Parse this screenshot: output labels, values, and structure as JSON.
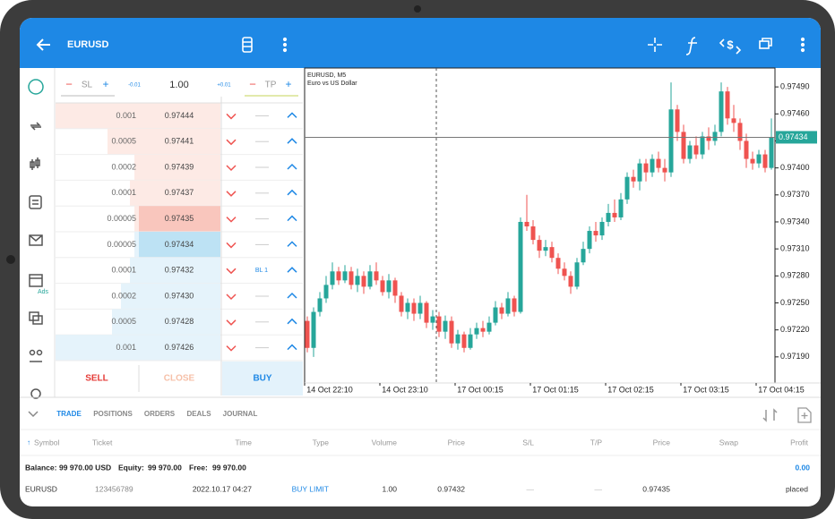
{
  "header": {
    "symbol": "EURUSD"
  },
  "order_panel": {
    "minus": "−",
    "plus": "+",
    "sl": "SL",
    "tp": "TP",
    "step_down": "-0.01",
    "volume": "1.00",
    "step_up": "+0.01",
    "depth": [
      {
        "volume": "0.001",
        "price": "0.97444"
      },
      {
        "volume": "0.0005",
        "price": "0.97441"
      },
      {
        "volume": "0.0002",
        "price": "0.97439"
      },
      {
        "volume": "0.0001",
        "price": "0.97437"
      },
      {
        "volume": "0.00005",
        "price": "0.97435"
      },
      {
        "volume": "0.00005",
        "price": "0.97434"
      },
      {
        "volume": "0.0001",
        "price": "0.97432"
      },
      {
        "volume": "0.0002",
        "price": "0.97430"
      },
      {
        "volume": "0.0005",
        "price": "0.97428"
      },
      {
        "volume": "0.001",
        "price": "0.97426"
      }
    ],
    "pending_label": "BL 1",
    "sell": "SELL",
    "close": "CLOSE",
    "buy": "BUY"
  },
  "sidebar": {
    "ads": "Ads"
  },
  "chart": {
    "type": "candlestick",
    "title": "EURUSD, M5",
    "subtitle": "Euro vs US Dollar",
    "ylim": [
      0.97161,
      0.97511
    ],
    "yticks": [
      {
        "value": 0.9749,
        "label": "0.97490"
      },
      {
        "value": 0.9746,
        "label": "0.97460"
      },
      {
        "value": 0.9743,
        "label": "0.97430"
      },
      {
        "value": 0.974,
        "label": "0.97400"
      },
      {
        "value": 0.9737,
        "label": "0.97370"
      },
      {
        "value": 0.9734,
        "label": "0.97340"
      },
      {
        "value": 0.9731,
        "label": "0.97310"
      },
      {
        "value": 0.9728,
        "label": "0.97280"
      },
      {
        "value": 0.9725,
        "label": "0.97250"
      },
      {
        "value": 0.9722,
        "label": "0.97220"
      },
      {
        "value": 0.9719,
        "label": "0.97190"
      }
    ],
    "current_price": 0.97434,
    "time_labels": [
      "14 Oct 22:10",
      "14 Oct 23:10",
      "17 Oct 00:15",
      "17 Oct 01:15",
      "17 Oct 02:15",
      "17 Oct 03:15",
      "17 Oct 04:15"
    ],
    "up_color": "#26a69a",
    "down_color": "#ef5350",
    "candles": [
      [
        0.9723,
        0.97235,
        0.97195,
        0.972
      ],
      [
        0.972,
        0.97245,
        0.9719,
        0.9724
      ],
      [
        0.9724,
        0.97262,
        0.97235,
        0.97255
      ],
      [
        0.97255,
        0.9728,
        0.9725,
        0.9727
      ],
      [
        0.9727,
        0.97295,
        0.97265,
        0.97285
      ],
      [
        0.97285,
        0.9729,
        0.9727,
        0.97275
      ],
      [
        0.97275,
        0.97292,
        0.97272,
        0.97285
      ],
      [
        0.97285,
        0.9729,
        0.97265,
        0.9727
      ],
      [
        0.9727,
        0.97288,
        0.97262,
        0.9728
      ],
      [
        0.9728,
        0.97285,
        0.9726,
        0.97268
      ],
      [
        0.97268,
        0.97292,
        0.97265,
        0.97285
      ],
      [
        0.97285,
        0.97295,
        0.9727,
        0.97275
      ],
      [
        0.97275,
        0.9728,
        0.97258,
        0.97262
      ],
      [
        0.97262,
        0.97282,
        0.97255,
        0.97275
      ],
      [
        0.97275,
        0.97278,
        0.9725,
        0.97258
      ],
      [
        0.97258,
        0.97262,
        0.97235,
        0.9724
      ],
      [
        0.9724,
        0.97255,
        0.97232,
        0.9725
      ],
      [
        0.9725,
        0.97255,
        0.9723,
        0.97238
      ],
      [
        0.97238,
        0.97258,
        0.97232,
        0.9725
      ],
      [
        0.9725,
        0.97252,
        0.97222,
        0.97228
      ],
      [
        0.97228,
        0.97242,
        0.9722,
        0.97235
      ],
      [
        0.97235,
        0.9724,
        0.97212,
        0.97218
      ],
      [
        0.97218,
        0.97236,
        0.9721,
        0.9723
      ],
      [
        0.9723,
        0.97235,
        0.972,
        0.97205
      ],
      [
        0.97205,
        0.9722,
        0.97198,
        0.97215
      ],
      [
        0.97215,
        0.97218,
        0.97195,
        0.972
      ],
      [
        0.972,
        0.97222,
        0.97198,
        0.97215
      ],
      [
        0.97215,
        0.97228,
        0.9721,
        0.97222
      ],
      [
        0.97222,
        0.9723,
        0.97212,
        0.97218
      ],
      [
        0.97218,
        0.97235,
        0.97215,
        0.97228
      ],
      [
        0.97228,
        0.97252,
        0.97225,
        0.97245
      ],
      [
        0.97245,
        0.9725,
        0.97232,
        0.97238
      ],
      [
        0.97238,
        0.97262,
        0.97235,
        0.97255
      ],
      [
        0.97255,
        0.97258,
        0.97235,
        0.9724
      ],
      [
        0.9724,
        0.97345,
        0.97238,
        0.9734
      ],
      [
        0.9734,
        0.9737,
        0.9733,
        0.97335
      ],
      [
        0.97335,
        0.97342,
        0.97315,
        0.9732
      ],
      [
        0.9732,
        0.97325,
        0.973,
        0.97308
      ],
      [
        0.97308,
        0.9732,
        0.97302,
        0.97312
      ],
      [
        0.97312,
        0.97318,
        0.97295,
        0.973
      ],
      [
        0.973,
        0.97305,
        0.97282,
        0.97288
      ],
      [
        0.97288,
        0.97295,
        0.97275,
        0.9728
      ],
      [
        0.9728,
        0.97285,
        0.9726,
        0.97268
      ],
      [
        0.97268,
        0.973,
        0.97265,
        0.97295
      ],
      [
        0.97295,
        0.97318,
        0.97292,
        0.9731
      ],
      [
        0.9731,
        0.97335,
        0.97305,
        0.9733
      ],
      [
        0.9733,
        0.9734,
        0.97318,
        0.97325
      ],
      [
        0.97325,
        0.97345,
        0.9732,
        0.9734
      ],
      [
        0.9734,
        0.9736,
        0.97335,
        0.9735
      ],
      [
        0.9735,
        0.97365,
        0.9734,
        0.97345
      ],
      [
        0.97345,
        0.97372,
        0.97342,
        0.97365
      ],
      [
        0.97365,
        0.97395,
        0.9736,
        0.9739
      ],
      [
        0.9739,
        0.97398,
        0.97378,
        0.97385
      ],
      [
        0.97385,
        0.9741,
        0.97375,
        0.97405
      ],
      [
        0.97405,
        0.9741,
        0.97385,
        0.97395
      ],
      [
        0.97395,
        0.97415,
        0.9739,
        0.9741
      ],
      [
        0.9741,
        0.97418,
        0.97395,
        0.974
      ],
      [
        0.974,
        0.9741,
        0.97385,
        0.97395
      ],
      [
        0.97395,
        0.97495,
        0.9739,
        0.97465
      ],
      [
        0.97465,
        0.9747,
        0.9743,
        0.9744
      ],
      [
        0.9744,
        0.97448,
        0.97405,
        0.9741
      ],
      [
        0.9741,
        0.9743,
        0.97405,
        0.97425
      ],
      [
        0.97425,
        0.97435,
        0.9741,
        0.97415
      ],
      [
        0.97415,
        0.9744,
        0.9741,
        0.97435
      ],
      [
        0.97435,
        0.97445,
        0.9742,
        0.9743
      ],
      [
        0.9743,
        0.97448,
        0.97425,
        0.9744
      ],
      [
        0.9744,
        0.97495,
        0.97435,
        0.97485
      ],
      [
        0.97485,
        0.9749,
        0.97448,
        0.97455
      ],
      [
        0.97455,
        0.9747,
        0.9744,
        0.9745
      ],
      [
        0.9745,
        0.97455,
        0.9742,
        0.9743
      ],
      [
        0.9743,
        0.97438,
        0.974,
        0.9741
      ],
      [
        0.9741,
        0.97418,
        0.97398,
        0.97405
      ],
      [
        0.97405,
        0.9742,
        0.974,
        0.97415
      ],
      [
        0.97415,
        0.9742,
        0.97395,
        0.974
      ],
      [
        0.974,
        0.97455,
        0.97398,
        0.97434
      ]
    ]
  },
  "tabs": [
    "TRADE",
    "POSITIONS",
    "ORDERS",
    "DEALS",
    "JOURNAL"
  ],
  "table": {
    "headers": [
      "Symbol",
      "Ticket",
      "Time",
      "Type",
      "Volume",
      "Price",
      "S/L",
      "T/P",
      "Price",
      "Swap",
      "Profit"
    ],
    "balance_label": "Balance:",
    "balance": "99 970.00 USD",
    "equity_label": "Equity:",
    "equity": "99 970.00",
    "free_label": "Free:",
    "free": "99 970.00",
    "profit": "0.00",
    "rows": [
      [
        "EURUSD",
        "123456789",
        "2022.10.17 04:27",
        "BUY LIMIT",
        "1.00",
        "0.97432",
        "—",
        "—",
        "0.97435",
        "placed"
      ]
    ]
  }
}
